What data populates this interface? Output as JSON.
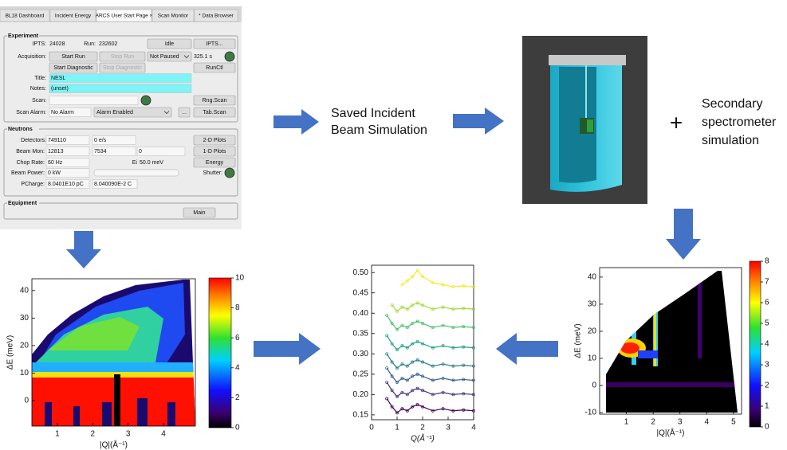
{
  "control_panel": {
    "tabs": [
      "BL18 Dashboard",
      "Incident Energy",
      "ARCS User Start Page ×",
      "Scan Monitor",
      "* Data Browser"
    ],
    "experiment": {
      "title": "Experiment",
      "ipts_label": "IPTS:",
      "ipts": "24028",
      "run_label": "Run:",
      "run": "232602",
      "status": "Idle",
      "ipts_button": "IPTS...",
      "acquisition_label": "Acquisition:",
      "start_run": "Start Run",
      "stop_run": "Stop Run",
      "pause_state": "Not Paused",
      "run_time": "325.1 s",
      "start_diagnostic": "Start Diagnostic",
      "stop_diagnostic": "Stop Diagnostic",
      "runctl": "RunCtl",
      "title_label": "Title:",
      "title_value": "NESL",
      "notes_label": "Notes:",
      "notes_value": "(unset)",
      "scan_label": "Scan:",
      "rng_scan": "Rng.Scan",
      "scan_alarm_label": "Scan Alarm:",
      "alarm_state": "No Alarm",
      "alarm_mode": "Alarm Enabled",
      "more": "...",
      "tab_scan": "Tab.Scan"
    },
    "neutrons": {
      "title": "Neutrons",
      "detectors_label": "Detectors:",
      "detectors": "749110",
      "detector_rate": "0 e/s",
      "plots_2d": "2-D Plots",
      "beam_mon_label": "Beam Mon:",
      "beam_mon": "12813",
      "beam_mon_2": "7534",
      "beam_mon_3": "0",
      "plots_1d": "1-D Plots",
      "chop_rate_label": "Chop Rate:",
      "chop_rate": "60 Hz",
      "ei_label": "Ei",
      "ei": "50.0 meV",
      "energy": "Energy",
      "beam_power_label": "Beam Power:",
      "beam_power": "0 kW",
      "shutter_label": "Shutter:",
      "pcharge_label": "PCharge:",
      "pcharge": "8.0401E10 pC",
      "pcharge_c": "8.040090E-2 C"
    },
    "equipment": {
      "title": "Equipment",
      "main": "Main"
    }
  },
  "steps": {
    "saved_incident": [
      "Saved Incident",
      "Beam Simulation"
    ],
    "plus": "+",
    "secondary": [
      "Secondary",
      "spectrometer",
      "simulation"
    ]
  },
  "plots": {
    "measured": {
      "xlim": [
        0.28,
        4.9
      ],
      "ylim": [
        -9.3,
        44.3
      ],
      "xticks": [
        1,
        2,
        3,
        4
      ],
      "yticks": [
        0,
        10,
        20,
        30,
        40
      ],
      "xlabel": "|Q|(Å⁻¹)",
      "ylabel": "ΔE (meV)",
      "clim": [
        0,
        10
      ],
      "cticks": [
        0,
        2,
        4,
        6,
        8,
        10
      ]
    },
    "cuts": {
      "xlim": [
        0,
        4
      ],
      "ylim": [
        0.138,
        0.518
      ],
      "xticks": [
        0,
        1,
        2,
        3,
        4
      ],
      "yticks": [
        0.15,
        {
          "value": 0.2,
          "label": "0.20"
        },
        0.25,
        {
          "value": 0.3,
          "label": "0.30"
        },
        0.35,
        {
          "value": 0.4,
          "label": "0.40"
        },
        0.45,
        {
          "value": 0.5,
          "label": "0.50"
        }
      ],
      "xlabel": "Q(Å⁻¹)",
      "x": [
        0.6,
        0.8,
        1.0,
        1.2,
        1.4,
        1.6,
        1.8,
        2.0,
        2.4,
        2.8,
        3.2,
        3.6,
        4.0
      ],
      "series": [
        {
          "color": "#440154",
          "values": [
            0.19,
            0.17,
            0.155,
            0.165,
            0.16,
            0.17,
            0.175,
            0.17,
            0.16,
            0.165,
            0.16,
            0.162,
            0.16
          ]
        },
        {
          "color": "#46327e",
          "values": [
            0.23,
            0.21,
            0.195,
            0.205,
            0.2,
            0.21,
            0.215,
            0.21,
            0.2,
            0.205,
            0.2,
            0.202,
            0.2
          ]
        },
        {
          "color": "#365c8d",
          "values": [
            0.265,
            0.245,
            0.23,
            0.24,
            0.235,
            0.245,
            0.25,
            0.245,
            0.235,
            0.24,
            0.235,
            0.237,
            0.235
          ]
        },
        {
          "color": "#277f8e",
          "values": [
            0.3,
            0.28,
            0.265,
            0.275,
            0.27,
            0.28,
            0.285,
            0.28,
            0.27,
            0.275,
            0.27,
            0.272,
            0.27
          ]
        },
        {
          "color": "#1fa187",
          "values": [
            0.345,
            0.325,
            0.31,
            0.32,
            0.315,
            0.325,
            0.33,
            0.325,
            0.315,
            0.32,
            0.315,
            0.317,
            0.315
          ]
        },
        {
          "color": "#4ac16d",
          "values": [
            0.395,
            0.375,
            0.36,
            0.37,
            0.365,
            0.375,
            0.38,
            0.375,
            0.365,
            0.37,
            0.365,
            0.367,
            0.365
          ]
        },
        {
          "color": "#a0da39",
          "values": [
            null,
            0.42,
            0.405,
            0.415,
            0.41,
            0.42,
            0.425,
            0.42,
            0.41,
            0.415,
            0.41,
            0.412,
            0.41
          ]
        },
        {
          "color": "#fde725",
          "values": [
            null,
            null,
            null,
            0.47,
            0.48,
            0.49,
            0.505,
            0.49,
            0.475,
            0.47,
            0.465,
            0.467,
            0.465
          ]
        }
      ]
    },
    "simulated": {
      "xlim": [
        0,
        5.3
      ],
      "ylim": [
        -10.6,
        43.5
      ],
      "xticks": [
        1,
        2,
        3,
        4,
        5
      ],
      "yticks": [
        -10,
        0,
        10,
        20,
        30,
        40
      ],
      "xlabel": "|Q|(Å⁻¹)",
      "ylabel": "ΔE (meV)",
      "clim": [
        0,
        8
      ],
      "cticks": [
        0,
        1,
        2,
        3,
        4,
        5,
        6,
        7,
        8
      ]
    }
  }
}
